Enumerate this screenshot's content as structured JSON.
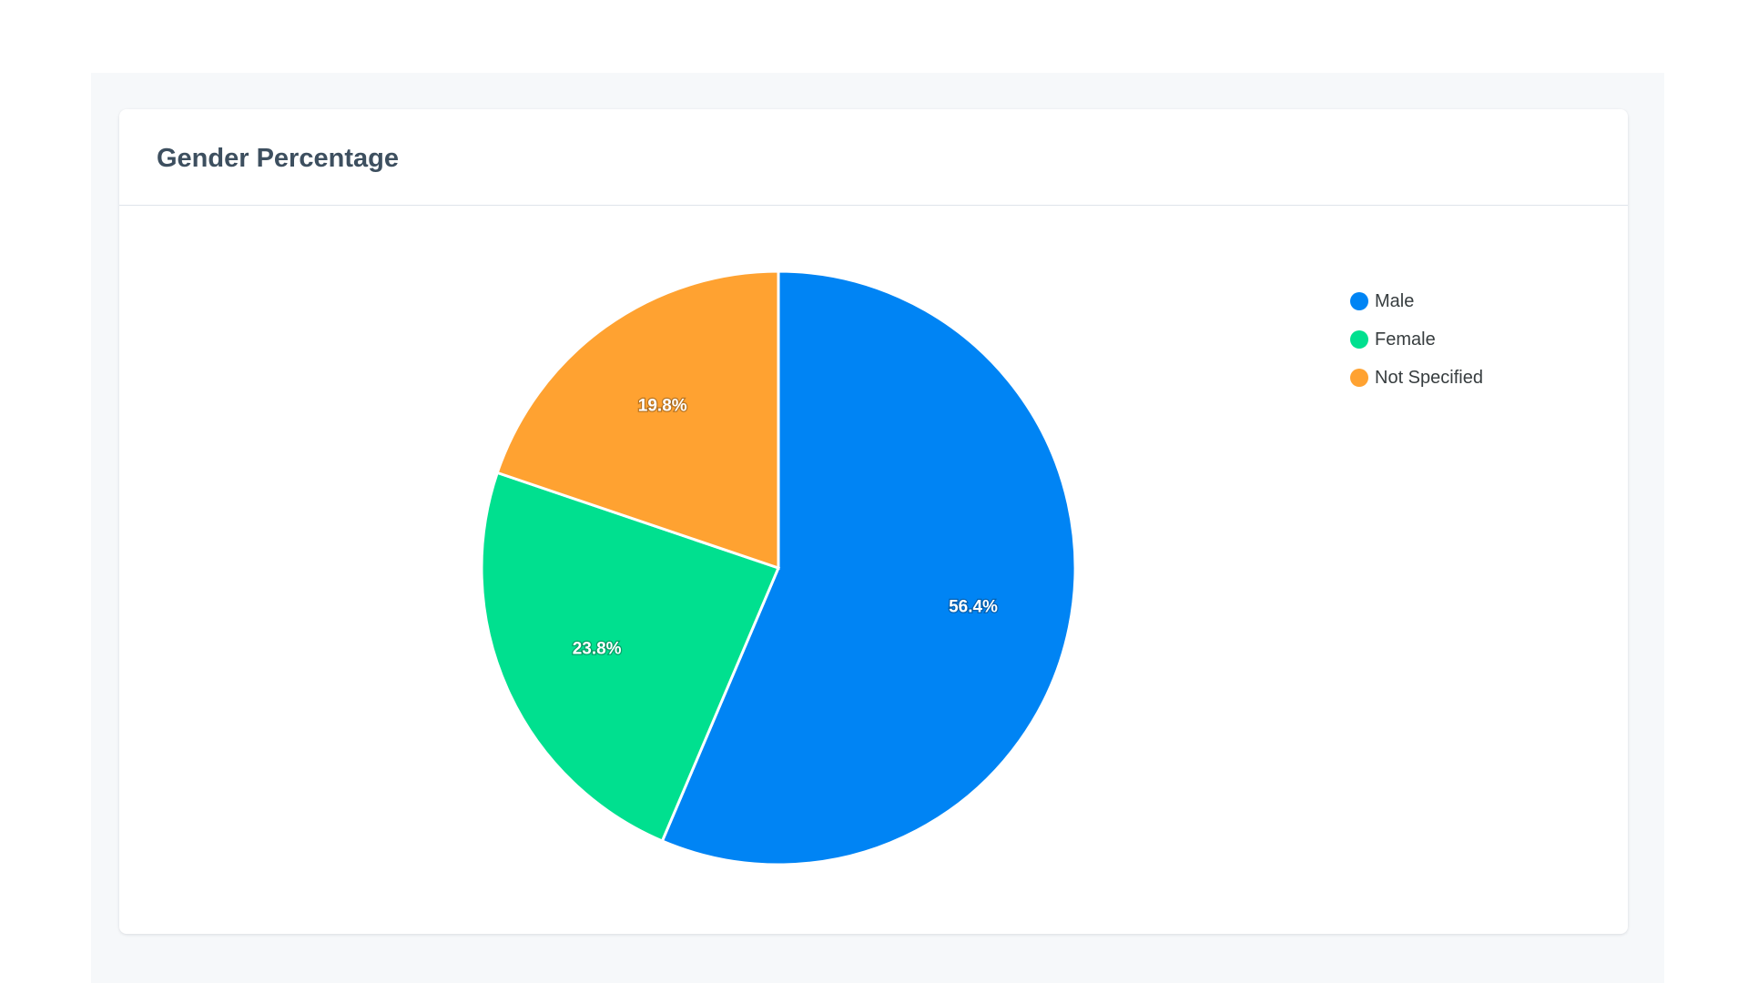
{
  "card": {
    "title": "Gender Percentage"
  },
  "chart_data": {
    "type": "pie",
    "title": "Gender Percentage",
    "categories": [
      "Male",
      "Female",
      "Not Specified"
    ],
    "values": [
      56.4,
      23.8,
      19.8
    ],
    "labels": [
      "56.4%",
      "23.8%",
      "19.8%"
    ],
    "colors": [
      "#0084f4",
      "#00e08f",
      "#ffa231"
    ],
    "start_angle": "12 o'clock, clockwise",
    "legend_position": "top-right"
  }
}
